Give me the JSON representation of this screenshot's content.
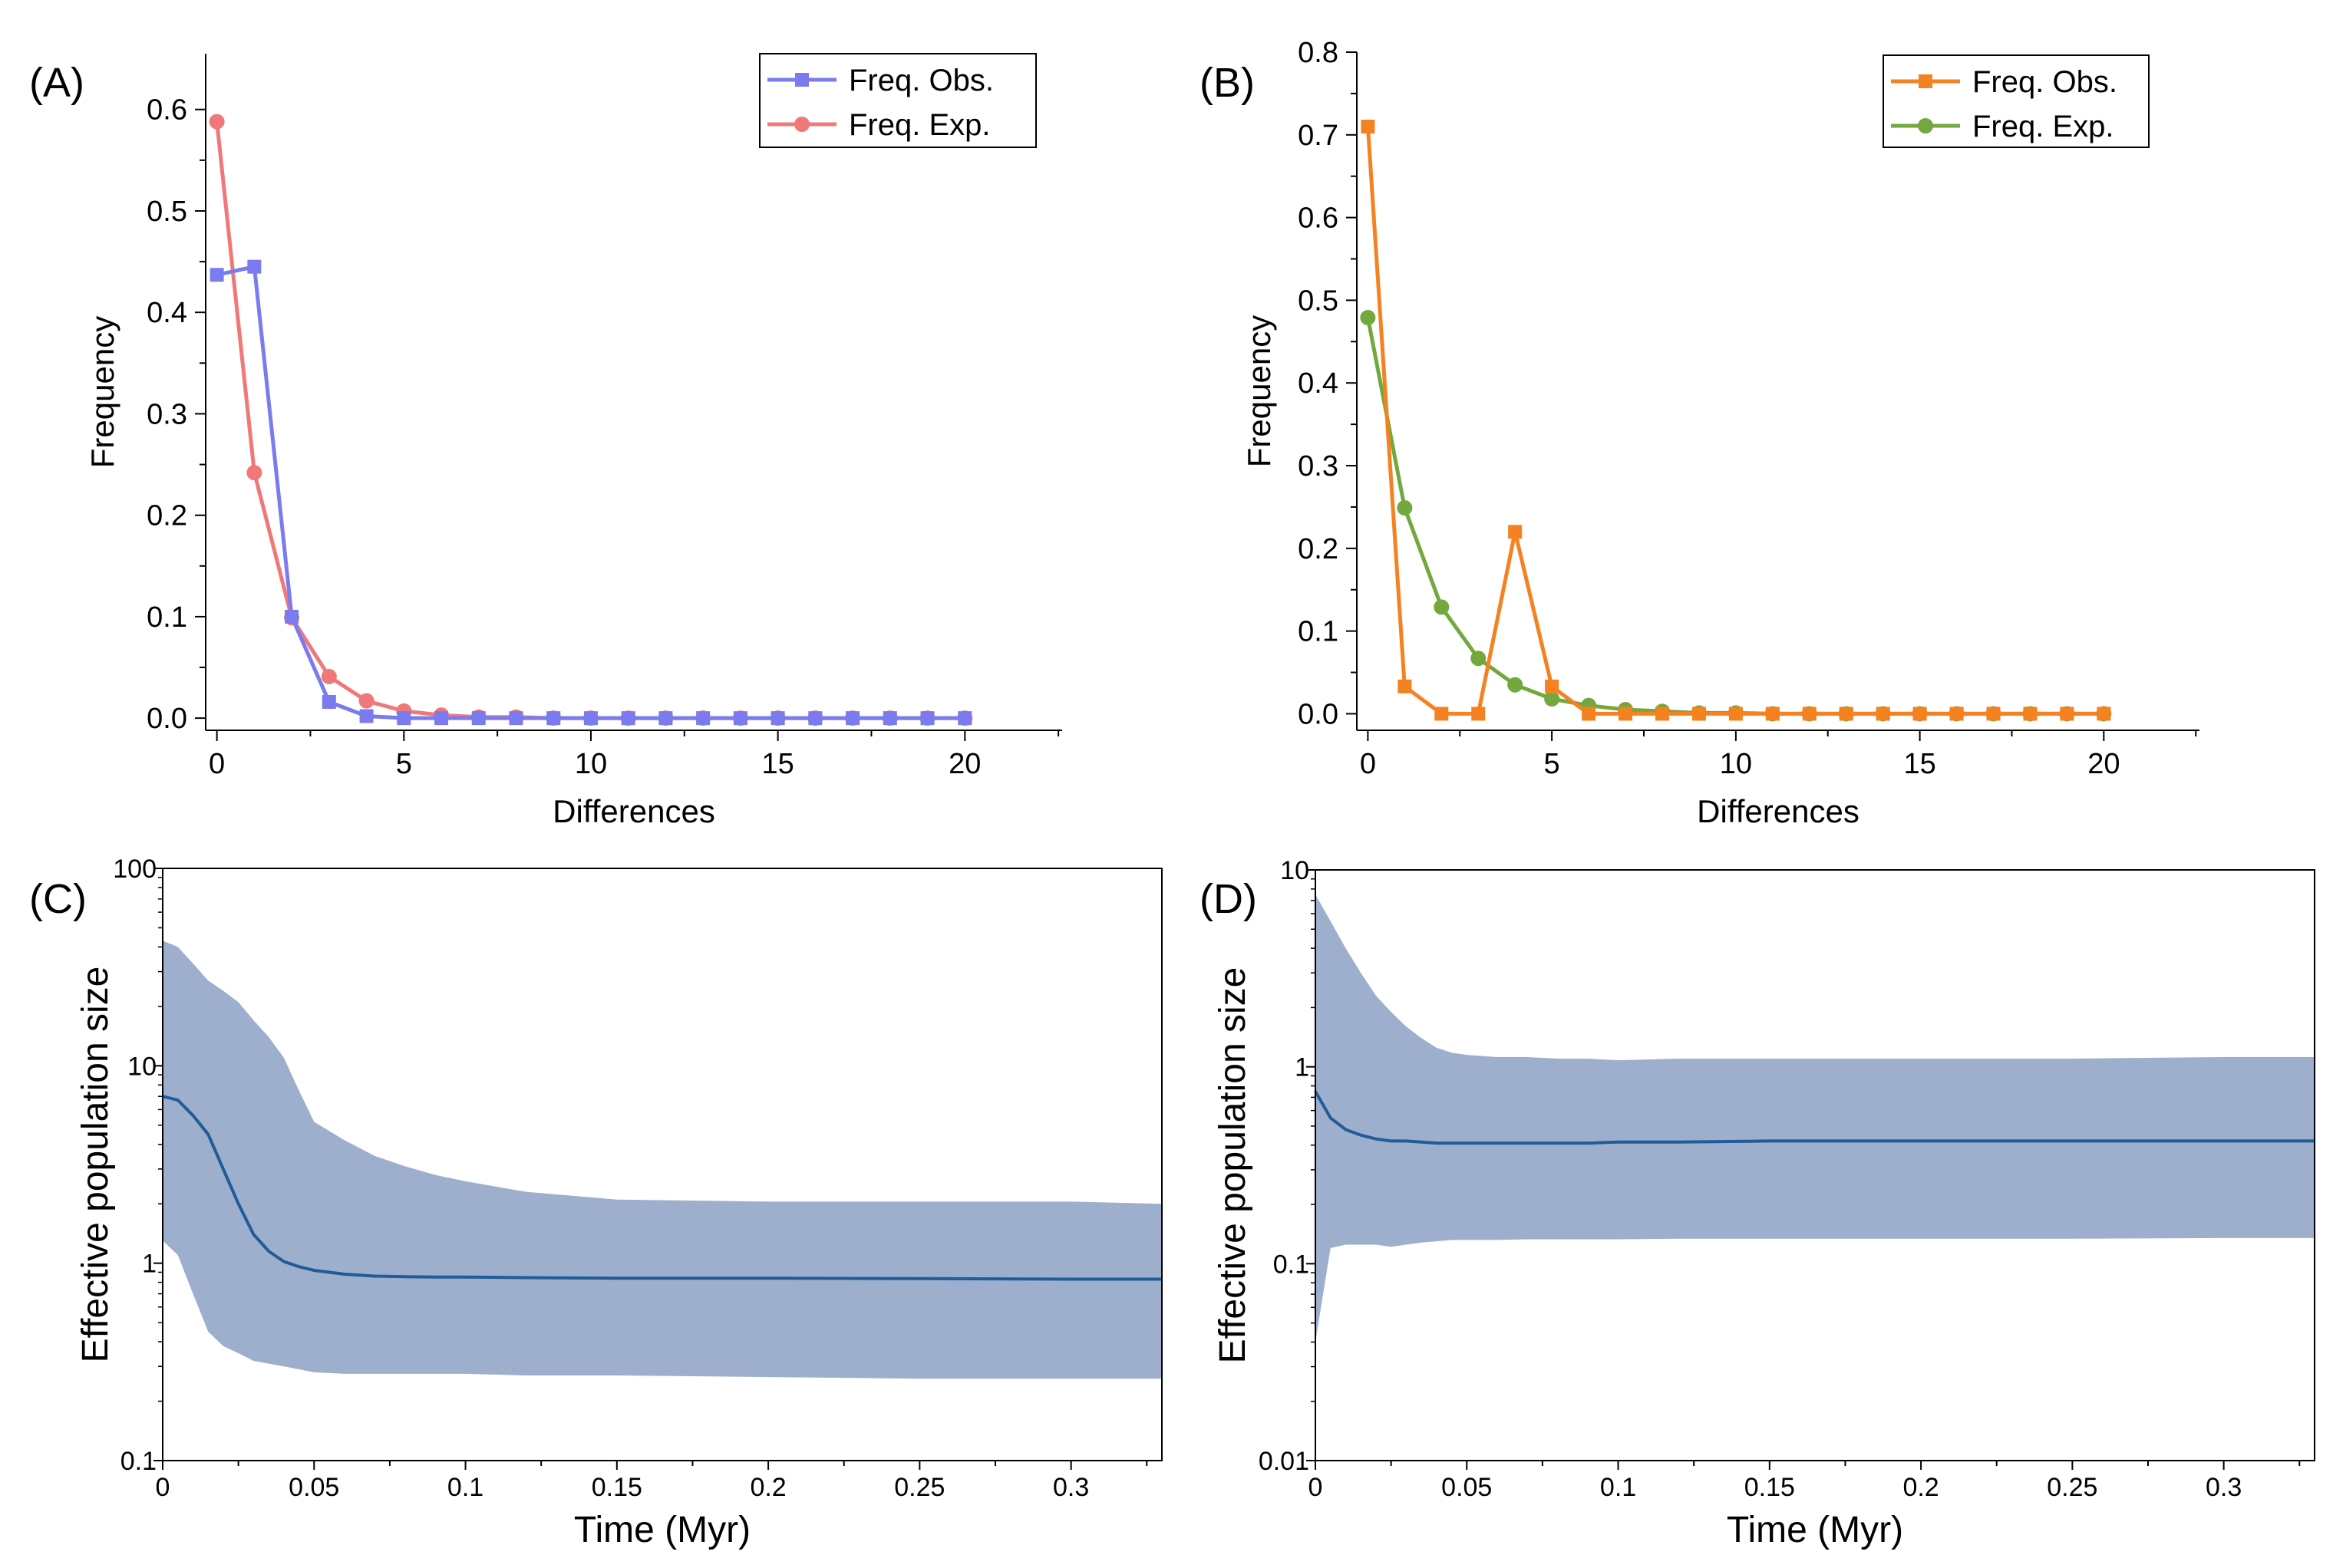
{
  "colors": {
    "obs_A": "#7b7bf0",
    "exp_A": "#f07878",
    "obs_B": "#f58220",
    "exp_B": "#72a83e",
    "band": "#9eafcd",
    "median": "#1f5c99"
  },
  "chart_data": [
    {
      "id": "A",
      "panel_label": "(A)",
      "type": "line",
      "xlabel": "Differences",
      "ylabel": "Frequency",
      "xlim": [
        -0.3,
        22.6
      ],
      "ylim": [
        -0.012,
        0.655
      ],
      "xticks": [
        0,
        5,
        10,
        15,
        20
      ],
      "xtick_labels": [
        "0",
        "5",
        "10",
        "15",
        "20"
      ],
      "yticks": [
        0.0,
        0.1,
        0.2,
        0.3,
        0.4,
        0.5,
        0.6
      ],
      "ytick_labels": [
        "0.0",
        "0.1",
        "0.2",
        "0.3",
        "0.4",
        "0.5",
        "0.6"
      ],
      "legend_position": "top-right",
      "x": [
        0,
        1,
        2,
        3,
        4,
        5,
        6,
        7,
        8,
        9,
        10,
        11,
        12,
        13,
        14,
        15,
        16,
        17,
        18,
        19,
        20
      ],
      "series": [
        {
          "name": "Freq. Obs.",
          "marker": "square",
          "color_key": "obs_A",
          "values": [
            0.437,
            0.445,
            0.1,
            0.016,
            0.002,
            0.0,
            0.0,
            0.0,
            0.0,
            0.0,
            0.0,
            0.0,
            0.0,
            0.0,
            0.0,
            0.0,
            0.0,
            0.0,
            0.0,
            0.0,
            0.0
          ]
        },
        {
          "name": "Freq. Exp.",
          "marker": "circle",
          "color_key": "exp_A",
          "values": [
            0.588,
            0.242,
            0.099,
            0.041,
            0.017,
            0.007,
            0.003,
            0.001,
            0.001,
            0.0,
            0.0,
            0.0,
            0.0,
            0.0,
            0.0,
            0.0,
            0.0,
            0.0,
            0.0,
            0.0,
            0.0
          ]
        }
      ]
    },
    {
      "id": "B",
      "panel_label": "(B)",
      "type": "line",
      "xlabel": "Differences",
      "ylabel": "Frequency",
      "xlim": [
        -0.3,
        22.6
      ],
      "ylim": [
        -0.02,
        0.8
      ],
      "xticks": [
        0,
        5,
        10,
        15,
        20
      ],
      "xtick_labels": [
        "0",
        "5",
        "10",
        "15",
        "20"
      ],
      "yticks": [
        0.0,
        0.1,
        0.2,
        0.3,
        0.4,
        0.5,
        0.6,
        0.7,
        0.8
      ],
      "ytick_labels": [
        "0.0",
        "0.1",
        "0.2",
        "0.3",
        "0.4",
        "0.5",
        "0.6",
        "0.7",
        "0.8"
      ],
      "legend_position": "top-right",
      "x": [
        0,
        1,
        2,
        3,
        4,
        5,
        6,
        7,
        8,
        9,
        10,
        11,
        12,
        13,
        14,
        15,
        16,
        17,
        18,
        19,
        20
      ],
      "series": [
        {
          "name": "Freq. Obs.",
          "marker": "square",
          "color_key": "obs_B",
          "values": [
            0.71,
            0.033,
            0.0,
            0.0,
            0.22,
            0.033,
            0.0,
            0.0,
            0.0,
            0.0,
            0.0,
            0.0,
            0.0,
            0.0,
            0.0,
            0.0,
            0.0,
            0.0,
            0.0,
            0.0,
            0.0
          ]
        },
        {
          "name": "Freq. Exp.",
          "marker": "circle",
          "color_key": "exp_B",
          "values": [
            0.479,
            0.249,
            0.129,
            0.067,
            0.035,
            0.018,
            0.01,
            0.005,
            0.003,
            0.001,
            0.001,
            0.0,
            0.0,
            0.0,
            0.0,
            0.0,
            0.0,
            0.0,
            0.0,
            0.0,
            0.0
          ]
        }
      ]
    },
    {
      "id": "C",
      "panel_label": "(C)",
      "type": "area",
      "xlabel": "Time (Myr)",
      "ylabel": "Effective population size",
      "yscale": "log",
      "xlim": [
        0,
        0.33
      ],
      "ylim": [
        0.1,
        100
      ],
      "xticks": [
        0,
        0.05,
        0.1,
        0.15,
        0.2,
        0.25,
        0.3
      ],
      "xtick_labels": [
        "0",
        "0.05",
        "0.1",
        "0.15",
        "0.2",
        "0.25",
        "0.3"
      ],
      "yticks": [
        0.1,
        1,
        10,
        100
      ],
      "ytick_labels": [
        "0.1",
        "1",
        "10",
        "100"
      ],
      "x": [
        0,
        0.005,
        0.01,
        0.015,
        0.02,
        0.025,
        0.03,
        0.035,
        0.04,
        0.045,
        0.05,
        0.06,
        0.07,
        0.08,
        0.09,
        0.1,
        0.12,
        0.15,
        0.2,
        0.25,
        0.3,
        0.33
      ],
      "median": [
        7.0,
        6.7,
        5.6,
        4.5,
        3.0,
        2.0,
        1.4,
        1.15,
        1.02,
        0.96,
        0.92,
        0.88,
        0.86,
        0.855,
        0.85,
        0.85,
        0.845,
        0.84,
        0.84,
        0.835,
        0.83,
        0.83
      ],
      "upper": [
        43,
        40,
        33,
        27,
        24,
        21,
        17,
        14,
        11,
        7.5,
        5.2,
        4.2,
        3.5,
        3.1,
        2.8,
        2.6,
        2.3,
        2.1,
        2.05,
        2.05,
        2.05,
        2.0
      ],
      "lower": [
        1.3,
        1.1,
        0.7,
        0.45,
        0.38,
        0.35,
        0.32,
        0.31,
        0.3,
        0.29,
        0.28,
        0.275,
        0.275,
        0.275,
        0.275,
        0.275,
        0.27,
        0.27,
        0.265,
        0.26,
        0.26,
        0.26
      ]
    },
    {
      "id": "D",
      "panel_label": "(D)",
      "type": "area",
      "xlabel": "Time (Myr)",
      "ylabel": "Effective population size",
      "yscale": "log",
      "xlim": [
        0,
        0.33
      ],
      "ylim": [
        0.01,
        10
      ],
      "xticks": [
        0,
        0.05,
        0.1,
        0.15,
        0.2,
        0.25,
        0.3
      ],
      "xtick_labels": [
        "0",
        "0.05",
        "0.1",
        "0.15",
        "0.2",
        "0.25",
        "0.3"
      ],
      "yticks": [
        0.01,
        0.1,
        1,
        10
      ],
      "ytick_labels": [
        "0.01",
        "0.1",
        "1",
        "10"
      ],
      "x": [
        0,
        0.005,
        0.01,
        0.015,
        0.02,
        0.025,
        0.03,
        0.035,
        0.04,
        0.045,
        0.05,
        0.06,
        0.07,
        0.08,
        0.09,
        0.1,
        0.12,
        0.15,
        0.2,
        0.25,
        0.3,
        0.33
      ],
      "median": [
        0.75,
        0.55,
        0.48,
        0.45,
        0.43,
        0.42,
        0.42,
        0.415,
        0.41,
        0.41,
        0.41,
        0.41,
        0.41,
        0.41,
        0.41,
        0.415,
        0.415,
        0.42,
        0.42,
        0.42,
        0.42,
        0.42
      ],
      "upper": [
        7.5,
        5.5,
        4.0,
        3.0,
        2.3,
        1.9,
        1.6,
        1.4,
        1.25,
        1.18,
        1.15,
        1.12,
        1.12,
        1.1,
        1.1,
        1.08,
        1.1,
        1.1,
        1.1,
        1.1,
        1.12,
        1.12
      ],
      "lower": [
        0.04,
        0.12,
        0.125,
        0.125,
        0.125,
        0.122,
        0.125,
        0.128,
        0.13,
        0.132,
        0.132,
        0.132,
        0.133,
        0.133,
        0.133,
        0.133,
        0.134,
        0.134,
        0.134,
        0.134,
        0.135,
        0.135
      ]
    }
  ]
}
